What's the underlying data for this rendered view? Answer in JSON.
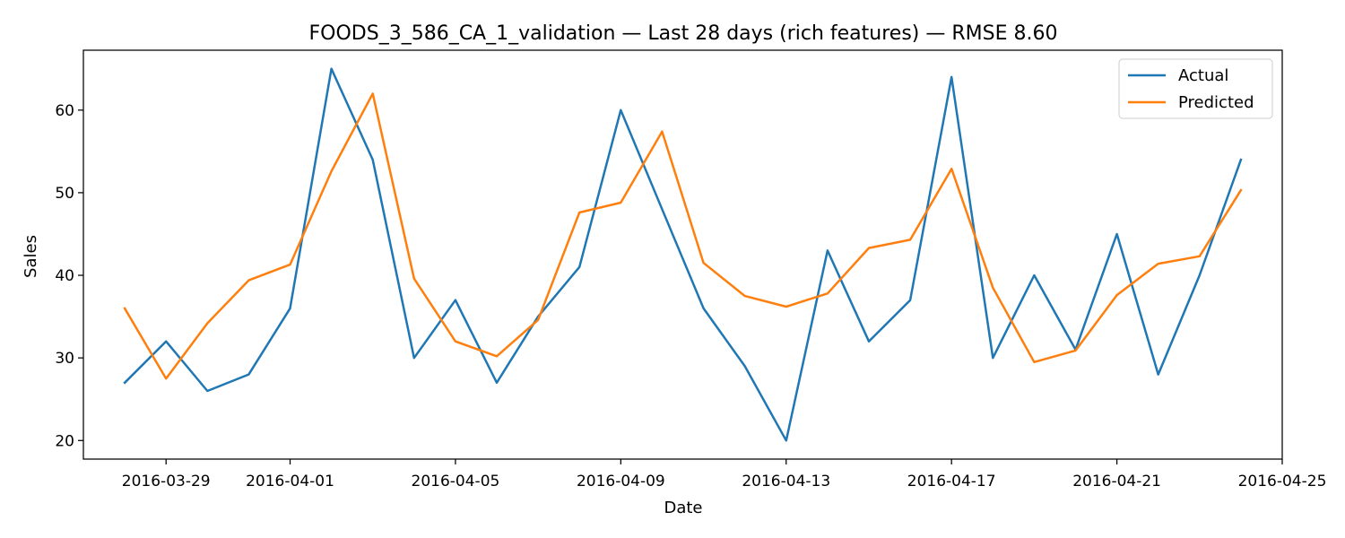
{
  "chart_data": {
    "type": "line",
    "title": "FOODS_3_586_CA_1_validation — Last 28 days (rich features) — RMSE 8.60",
    "xlabel": "Date",
    "ylabel": "Sales",
    "x": [
      "2016-03-28",
      "2016-03-29",
      "2016-03-30",
      "2016-03-31",
      "2016-04-01",
      "2016-04-02",
      "2016-04-03",
      "2016-04-04",
      "2016-04-05",
      "2016-04-06",
      "2016-04-07",
      "2016-04-08",
      "2016-04-09",
      "2016-04-10",
      "2016-04-11",
      "2016-04-12",
      "2016-04-13",
      "2016-04-14",
      "2016-04-15",
      "2016-04-16",
      "2016-04-17",
      "2016-04-18",
      "2016-04-19",
      "2016-04-20",
      "2016-04-21",
      "2016-04-22",
      "2016-04-23",
      "2016-04-24"
    ],
    "xticks": [
      "2016-03-29",
      "2016-04-01",
      "2016-04-05",
      "2016-04-09",
      "2016-04-13",
      "2016-04-17",
      "2016-04-21",
      "2016-04-25"
    ],
    "xlim": [
      "2016-03-27",
      "2016-04-25"
    ],
    "yticks": [
      20,
      30,
      40,
      50,
      60
    ],
    "ylim": [
      17.75,
      67.25
    ],
    "grid": false,
    "legend_position": "top-right",
    "series": [
      {
        "name": "Actual",
        "color": "#1f77b4",
        "values": [
          27,
          32,
          26,
          28,
          36,
          65,
          54,
          30,
          37,
          27,
          35,
          41,
          60,
          48,
          36,
          29,
          20,
          43,
          32,
          37,
          64,
          30,
          40,
          31,
          45,
          28,
          40,
          54
        ]
      },
      {
        "name": "Predicted",
        "color": "#ff7f0e",
        "values": [
          36,
          27.5,
          34.2,
          39.4,
          41.3,
          52.6,
          62,
          39.6,
          32,
          30.2,
          34.6,
          47.6,
          48.8,
          57.4,
          41.5,
          37.5,
          36.2,
          37.8,
          43.3,
          44.3,
          52.9,
          38.5,
          29.5,
          30.9,
          37.6,
          41.4,
          42.3,
          50.3
        ]
      }
    ]
  }
}
